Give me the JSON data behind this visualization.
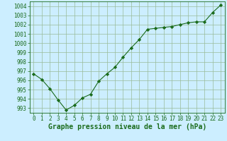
{
  "x": [
    0,
    1,
    2,
    3,
    4,
    5,
    6,
    7,
    8,
    9,
    10,
    11,
    12,
    13,
    14,
    15,
    16,
    17,
    18,
    19,
    20,
    21,
    22,
    23
  ],
  "y": [
    996.7,
    996.1,
    995.1,
    993.9,
    992.8,
    993.3,
    994.1,
    994.5,
    995.9,
    996.7,
    997.4,
    998.5,
    999.5,
    1000.4,
    1001.5,
    1001.6,
    1001.7,
    1001.8,
    1002.0,
    1002.2,
    1002.3,
    1002.3,
    1003.3,
    1004.1
  ],
  "line_color": "#1a6b1a",
  "marker": "D",
  "marker_size": 2.2,
  "bg_color": "#cceeff",
  "grid_color": "#99bb99",
  "xlabel": "Graphe pression niveau de la mer (hPa)",
  "xlabel_color": "#1a6b1a",
  "xlabel_fontsize": 7,
  "tick_color": "#1a6b1a",
  "tick_fontsize": 5.5,
  "ylim": [
    992.5,
    1004.5
  ],
  "yticks": [
    993,
    994,
    995,
    996,
    997,
    998,
    999,
    1000,
    1001,
    1002,
    1003,
    1004
  ],
  "xlim": [
    -0.5,
    23.5
  ],
  "xticks": [
    0,
    1,
    2,
    3,
    4,
    5,
    6,
    7,
    8,
    9,
    10,
    11,
    12,
    13,
    14,
    15,
    16,
    17,
    18,
    19,
    20,
    21,
    22,
    23
  ]
}
